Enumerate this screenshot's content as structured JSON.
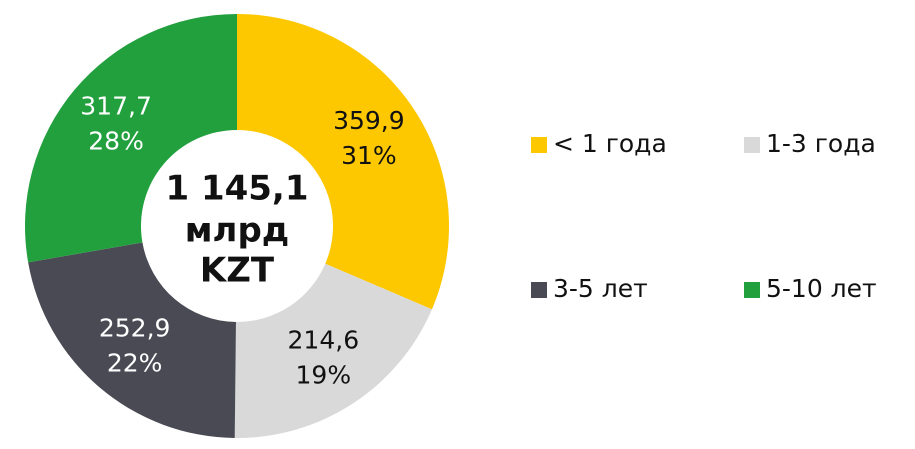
{
  "chart_data": {
    "type": "donut",
    "center_label": [
      "1 145,1",
      "млрд",
      "KZT"
    ],
    "categories": [
      "< 1 года",
      "1-3 года",
      "3-5 лет",
      "5-10 лет"
    ],
    "values": [
      359.9,
      214.6,
      252.9,
      317.7
    ],
    "value_labels": [
      "359,9",
      "214,6",
      "252,9",
      "317,7"
    ],
    "percents": [
      31,
      19,
      22,
      28
    ],
    "percent_labels": [
      "31%",
      "19%",
      "22%",
      "28%"
    ],
    "colors": [
      "#fdc800",
      "#d9d9d9",
      "#4a4a55",
      "#22a03e"
    ],
    "legend": "right"
  }
}
